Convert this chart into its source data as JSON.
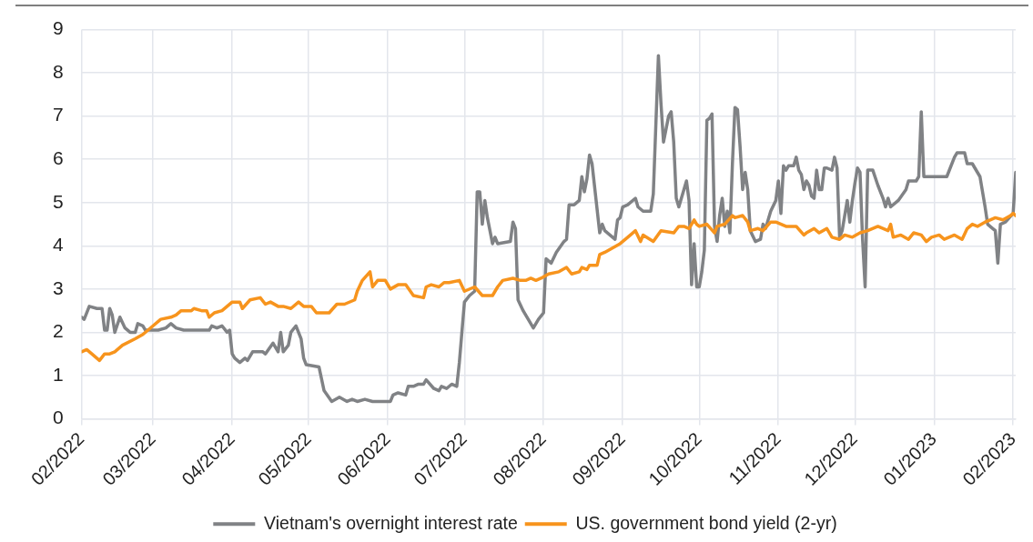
{
  "chart_data": {
    "type": "line",
    "xlim": [
      "2022-02-01",
      "2023-02-02"
    ],
    "xticks": [
      {
        "value": "2022-02-01",
        "label": "02/2022"
      },
      {
        "value": "2022-03-01",
        "label": "03/2022"
      },
      {
        "value": "2022-04-01",
        "label": "04/2022"
      },
      {
        "value": "2022-05-01",
        "label": "05/2022"
      },
      {
        "value": "2022-06-01",
        "label": "06/2022"
      },
      {
        "value": "2022-07-01",
        "label": "07/2022"
      },
      {
        "value": "2022-08-01",
        "label": "08/2022"
      },
      {
        "value": "2022-09-01",
        "label": "09/2022"
      },
      {
        "value": "2022-10-01",
        "label": "10/2022"
      },
      {
        "value": "2022-11-01",
        "label": "11/2022"
      },
      {
        "value": "2022-12-01",
        "label": "12/2022"
      },
      {
        "value": "2023-01-01",
        "label": "01/2023"
      },
      {
        "value": "2023-02-01",
        "label": "02/2023"
      }
    ],
    "ylim": [
      0,
      9
    ],
    "yticks": [
      0,
      1,
      2,
      3,
      4,
      5,
      6,
      7,
      8,
      9
    ],
    "grid": true,
    "legend": "bottom",
    "marker": "none",
    "line_style": "solid",
    "series": [
      {
        "name": "Vietnam's overnight interest rate",
        "color": "#808285",
        "x": [
          "2022-02-01",
          "2022-02-02",
          "2022-02-04",
          "2022-02-07",
          "2022-02-09",
          "2022-02-10",
          "2022-02-11",
          "2022-02-12",
          "2022-02-13",
          "2022-02-14",
          "2022-02-16",
          "2022-02-18",
          "2022-02-20",
          "2022-02-22",
          "2022-02-23",
          "2022-02-25",
          "2022-02-26",
          "2022-03-01",
          "2022-03-03",
          "2022-03-06",
          "2022-03-08",
          "2022-03-10",
          "2022-03-13",
          "2022-03-20",
          "2022-03-23",
          "2022-03-24",
          "2022-03-26",
          "2022-03-28",
          "2022-03-30",
          "2022-03-31",
          "2022-04-01",
          "2022-04-02",
          "2022-04-04",
          "2022-04-06",
          "2022-04-07",
          "2022-04-09",
          "2022-04-13",
          "2022-04-14",
          "2022-04-17",
          "2022-04-19",
          "2022-04-20",
          "2022-04-21",
          "2022-04-23",
          "2022-04-24",
          "2022-04-26",
          "2022-04-28",
          "2022-04-29",
          "2022-04-30",
          "2022-05-05",
          "2022-05-07",
          "2022-05-10",
          "2022-05-13",
          "2022-05-16",
          "2022-05-18",
          "2022-05-20",
          "2022-05-23",
          "2022-05-26",
          "2022-06-02",
          "2022-06-03",
          "2022-06-05",
          "2022-06-08",
          "2022-06-09",
          "2022-06-11",
          "2022-06-13",
          "2022-06-15",
          "2022-06-16",
          "2022-06-19",
          "2022-06-21",
          "2022-06-22",
          "2022-06-24",
          "2022-06-26",
          "2022-06-28",
          "2022-06-29",
          "2022-07-01",
          "2022-07-03",
          "2022-07-05",
          "2022-07-06",
          "2022-07-07",
          "2022-07-08",
          "2022-07-09",
          "2022-07-10",
          "2022-07-12",
          "2022-07-13",
          "2022-07-14",
          "2022-07-19",
          "2022-07-20",
          "2022-07-21",
          "2022-07-22",
          "2022-07-24",
          "2022-07-26",
          "2022-07-28",
          "2022-07-30",
          "2022-08-01",
          "2022-08-02",
          "2022-08-04",
          "2022-08-06",
          "2022-08-09",
          "2022-08-10",
          "2022-08-11",
          "2022-08-13",
          "2022-08-15",
          "2022-08-16",
          "2022-08-17",
          "2022-08-18",
          "2022-08-19",
          "2022-08-20",
          "2022-08-23",
          "2022-08-24",
          "2022-08-25",
          "2022-08-29",
          "2022-08-30",
          "2022-08-31",
          "2022-09-01",
          "2022-09-03",
          "2022-09-06",
          "2022-09-07",
          "2022-09-09",
          "2022-09-12",
          "2022-09-13",
          "2022-09-15",
          "2022-09-16",
          "2022-09-17",
          "2022-09-19",
          "2022-09-20",
          "2022-09-21",
          "2022-09-22",
          "2022-09-23",
          "2022-09-25",
          "2022-09-26",
          "2022-09-27",
          "2022-09-28",
          "2022-09-29",
          "2022-09-30",
          "2022-10-01",
          "2022-10-02",
          "2022-10-03",
          "2022-10-04",
          "2022-10-05",
          "2022-10-06",
          "2022-10-07",
          "2022-10-08",
          "2022-10-09",
          "2022-10-10",
          "2022-10-11",
          "2022-10-12",
          "2022-10-13",
          "2022-10-14",
          "2022-10-15",
          "2022-10-16",
          "2022-10-17",
          "2022-10-18",
          "2022-10-19",
          "2022-10-20",
          "2022-10-21",
          "2022-10-23",
          "2022-10-25",
          "2022-10-26",
          "2022-10-27",
          "2022-10-29",
          "2022-10-31",
          "2022-11-01",
          "2022-11-02",
          "2022-11-03",
          "2022-11-04",
          "2022-11-05",
          "2022-11-07",
          "2022-11-08",
          "2022-11-09",
          "2022-11-10",
          "2022-11-11",
          "2022-11-12",
          "2022-11-13",
          "2022-11-14",
          "2022-11-15",
          "2022-11-16",
          "2022-11-17",
          "2022-11-18",
          "2022-11-19",
          "2022-11-20",
          "2022-11-22",
          "2022-11-23",
          "2022-11-24",
          "2022-11-25",
          "2022-11-26",
          "2022-11-28",
          "2022-11-29",
          "2022-11-30",
          "2022-12-01",
          "2022-12-02",
          "2022-12-03",
          "2022-12-04",
          "2022-12-05",
          "2022-12-06",
          "2022-12-08",
          "2022-12-10",
          "2022-12-12",
          "2022-12-13",
          "2022-12-14",
          "2022-12-15",
          "2022-12-18",
          "2022-12-21",
          "2022-12-22",
          "2022-12-25",
          "2022-12-26",
          "2022-12-27",
          "2022-12-28",
          "2023-01-01",
          "2023-01-06",
          "2023-01-09",
          "2023-01-10",
          "2023-01-13",
          "2023-01-14",
          "2023-01-16",
          "2023-01-18",
          "2023-01-19",
          "2023-01-21",
          "2023-01-22",
          "2023-01-24",
          "2023-01-25",
          "2023-01-26",
          "2023-01-27",
          "2023-01-29",
          "2023-02-01",
          "2023-02-02"
        ],
        "values": [
          2.35,
          2.3,
          2.6,
          2.55,
          2.55,
          2.05,
          2.05,
          2.55,
          2.4,
          2.0,
          2.35,
          2.1,
          2.0,
          2.0,
          2.2,
          2.15,
          2.05,
          2.05,
          2.05,
          2.1,
          2.2,
          2.1,
          2.05,
          2.05,
          2.05,
          2.15,
          2.1,
          2.15,
          2.0,
          2.05,
          1.5,
          1.4,
          1.3,
          1.4,
          1.35,
          1.55,
          1.55,
          1.5,
          1.75,
          1.55,
          2.0,
          1.55,
          1.7,
          2.0,
          2.15,
          1.85,
          1.4,
          1.25,
          1.2,
          0.65,
          0.4,
          0.5,
          0.4,
          0.45,
          0.4,
          0.45,
          0.4,
          0.4,
          0.55,
          0.6,
          0.55,
          0.75,
          0.75,
          0.8,
          0.8,
          0.9,
          0.7,
          0.65,
          0.75,
          0.7,
          0.8,
          0.75,
          1.3,
          2.7,
          2.85,
          2.95,
          5.25,
          5.25,
          4.5,
          5.05,
          4.65,
          4.05,
          4.2,
          4.05,
          4.1,
          4.55,
          4.4,
          2.75,
          2.5,
          2.3,
          2.1,
          2.3,
          2.45,
          3.7,
          3.6,
          3.85,
          4.1,
          4.15,
          4.95,
          4.95,
          5.05,
          5.6,
          5.25,
          5.55,
          6.1,
          5.9,
          4.3,
          4.5,
          4.35,
          4.15,
          4.6,
          4.65,
          4.9,
          4.95,
          5.1,
          4.9,
          4.8,
          4.8,
          5.2,
          8.4,
          7.3,
          6.4,
          7.0,
          7.1,
          6.4,
          5.1,
          4.9,
          5.3,
          5.5,
          5.05,
          3.1,
          4.05,
          3.05,
          3.05,
          3.4,
          3.9,
          6.9,
          6.95,
          7.05,
          4.45,
          4.1,
          4.7,
          5.1,
          4.45,
          4.8,
          4.3,
          5.9,
          7.2,
          7.15,
          6.3,
          5.3,
          5.7,
          5.3,
          4.35,
          4.1,
          4.15,
          4.5,
          4.4,
          4.8,
          5.05,
          5.5,
          4.75,
          5.85,
          5.75,
          5.85,
          5.85,
          6.05,
          5.75,
          5.65,
          5.3,
          5.5,
          5.4,
          5.15,
          5.1,
          5.75,
          5.3,
          5.3,
          5.8,
          5.8,
          5.75,
          6.05,
          5.8,
          4.2,
          4.35,
          5.05,
          4.55,
          5.05,
          5.45,
          5.8,
          5.7,
          4.15,
          3.05,
          5.75,
          5.75,
          5.4,
          5.1,
          4.9,
          5.1,
          4.9,
          5.05,
          5.3,
          5.5,
          5.5,
          5.6,
          7.1,
          5.6,
          5.6,
          5.6,
          6.05,
          6.15,
          6.15,
          5.9,
          5.9,
          5.7,
          5.6,
          4.9,
          4.5,
          4.4,
          4.35,
          3.6,
          4.5,
          4.55,
          4.75,
          5.7
        ]
      },
      {
        "name": "US. government bond yield (2-yr)",
        "color": "#f7941d",
        "x": [
          "2022-02-01",
          "2022-02-03",
          "2022-02-05",
          "2022-02-08",
          "2022-02-10",
          "2022-02-12",
          "2022-02-14",
          "2022-02-17",
          "2022-02-22",
          "2022-02-25",
          "2022-02-27",
          "2022-03-01",
          "2022-03-04",
          "2022-03-08",
          "2022-03-10",
          "2022-03-12",
          "2022-03-16",
          "2022-03-17",
          "2022-03-20",
          "2022-03-22",
          "2022-03-23",
          "2022-03-25",
          "2022-03-28",
          "2022-03-30",
          "2022-04-01",
          "2022-04-04",
          "2022-04-05",
          "2022-04-08",
          "2022-04-12",
          "2022-04-14",
          "2022-04-16",
          "2022-04-19",
          "2022-04-21",
          "2022-04-24",
          "2022-04-27",
          "2022-04-29",
          "2022-05-02",
          "2022-05-04",
          "2022-05-09",
          "2022-05-12",
          "2022-05-15",
          "2022-05-19",
          "2022-05-20",
          "2022-05-22",
          "2022-05-25",
          "2022-05-26",
          "2022-05-28",
          "2022-05-31",
          "2022-06-02",
          "2022-06-05",
          "2022-06-08",
          "2022-06-11",
          "2022-06-15",
          "2022-06-16",
          "2022-06-18",
          "2022-06-21",
          "2022-06-23",
          "2022-06-25",
          "2022-06-29",
          "2022-07-01",
          "2022-07-05",
          "2022-07-08",
          "2022-07-12",
          "2022-07-14",
          "2022-07-16",
          "2022-07-20",
          "2022-07-23",
          "2022-07-25",
          "2022-07-27",
          "2022-07-29",
          "2022-07-31",
          "2022-08-03",
          "2022-08-07",
          "2022-08-10",
          "2022-08-12",
          "2022-08-15",
          "2022-08-16",
          "2022-08-18",
          "2022-08-19",
          "2022-08-22",
          "2022-08-23",
          "2022-08-25",
          "2022-08-28",
          "2022-08-31",
          "2022-09-03",
          "2022-09-06",
          "2022-09-08",
          "2022-09-09",
          "2022-09-13",
          "2022-09-16",
          "2022-09-21",
          "2022-09-23",
          "2022-09-25",
          "2022-09-27",
          "2022-09-29",
          "2022-09-30",
          "2022-10-01",
          "2022-10-04",
          "2022-10-07",
          "2022-10-08",
          "2022-10-11",
          "2022-10-14",
          "2022-10-15",
          "2022-10-18",
          "2022-10-20",
          "2022-10-21",
          "2022-10-24",
          "2022-10-26",
          "2022-10-29",
          "2022-10-31",
          "2022-11-04",
          "2022-11-08",
          "2022-11-11",
          "2022-11-12",
          "2022-11-15",
          "2022-11-17",
          "2022-11-20",
          "2022-11-22",
          "2022-11-25",
          "2022-11-27",
          "2022-11-30",
          "2022-12-03",
          "2022-12-06",
          "2022-12-10",
          "2022-12-14",
          "2022-12-15",
          "2022-12-16",
          "2022-12-19",
          "2022-12-22",
          "2022-12-24",
          "2022-12-27",
          "2022-12-29",
          "2022-12-31",
          "2023-01-03",
          "2023-01-05",
          "2023-01-09",
          "2023-01-12",
          "2023-01-14",
          "2023-01-16",
          "2023-01-18",
          "2023-01-21",
          "2023-01-23",
          "2023-01-25",
          "2023-01-28",
          "2023-01-31",
          "2023-02-01",
          "2023-02-02"
        ],
        "values": [
          1.55,
          1.6,
          1.5,
          1.35,
          1.5,
          1.5,
          1.55,
          1.7,
          1.85,
          1.95,
          2.05,
          2.15,
          2.3,
          2.35,
          2.4,
          2.5,
          2.5,
          2.55,
          2.5,
          2.5,
          2.35,
          2.45,
          2.5,
          2.6,
          2.7,
          2.7,
          2.55,
          2.75,
          2.8,
          2.65,
          2.7,
          2.6,
          2.6,
          2.55,
          2.7,
          2.6,
          2.6,
          2.45,
          2.45,
          2.65,
          2.65,
          2.75,
          2.95,
          3.2,
          3.4,
          3.05,
          3.2,
          3.2,
          3.0,
          3.1,
          3.1,
          2.85,
          2.8,
          3.05,
          3.1,
          3.05,
          3.15,
          3.15,
          3.2,
          2.95,
          3.05,
          2.85,
          2.85,
          3.05,
          3.2,
          3.25,
          3.2,
          3.2,
          3.25,
          3.2,
          3.25,
          3.35,
          3.4,
          3.5,
          3.35,
          3.4,
          3.5,
          3.45,
          3.55,
          3.55,
          3.8,
          3.85,
          3.95,
          4.05,
          4.2,
          4.35,
          4.1,
          4.25,
          4.1,
          4.35,
          4.3,
          4.45,
          4.45,
          4.4,
          4.6,
          4.5,
          4.45,
          4.5,
          4.3,
          4.45,
          4.5,
          4.7,
          4.65,
          4.7,
          4.55,
          4.35,
          4.4,
          4.35,
          4.55,
          4.55,
          4.45,
          4.45,
          4.25,
          4.3,
          4.4,
          4.3,
          4.4,
          4.2,
          4.15,
          4.25,
          4.2,
          4.3,
          4.35,
          4.45,
          4.35,
          4.5,
          4.2,
          4.25,
          4.15,
          4.3,
          4.25,
          4.1,
          4.2,
          4.25,
          4.15,
          4.25,
          4.15,
          4.4,
          4.5,
          4.45,
          4.55,
          4.6,
          4.65,
          4.6,
          4.7,
          4.75,
          4.7
        ]
      }
    ]
  }
}
